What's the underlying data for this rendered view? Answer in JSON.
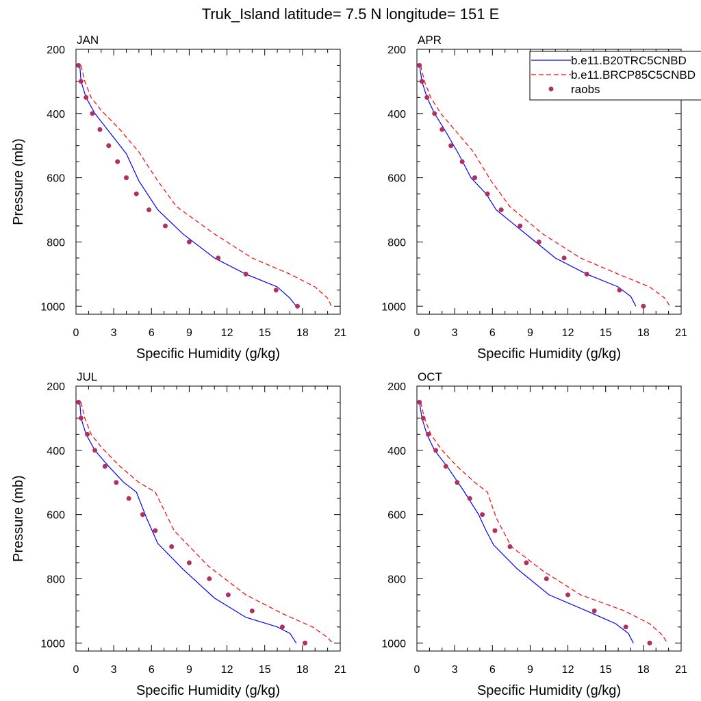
{
  "figure_title": "Truk_Island  latitude= 7.5 N longitude= 151 E",
  "colors": {
    "model_a": "#0000ff",
    "model_b": "#ff0000",
    "obs": "#b03060",
    "axis": "#000000"
  },
  "chart_data": [
    {
      "type": "line",
      "panel": "JAN",
      "title": "JAN",
      "xlabel": "Specific Humidity (g/kg)",
      "ylabel": "Pressure (mb)",
      "xlim": [
        0,
        21
      ],
      "ylim": [
        200,
        1025
      ],
      "y_inverted": true,
      "xticks": [
        0,
        3,
        6,
        9,
        12,
        15,
        18,
        21
      ],
      "yticks": [
        200,
        400,
        600,
        800,
        1000
      ],
      "series": [
        {
          "name": "b.e11.B20TRC5CNBD",
          "style": "solid",
          "x": [
            0.3,
            0.4,
            0.8,
            1.5,
            2.5,
            4.0,
            5.0,
            6.5,
            8.5,
            11.0,
            13.5,
            16.0,
            17.0,
            17.5
          ],
          "y": [
            250,
            300,
            350,
            400,
            450,
            525,
            610,
            700,
            775,
            850,
            900,
            940,
            975,
            1000
          ]
        },
        {
          "name": "b.e11.BRCP85C5CNBD",
          "style": "dashed",
          "x": [
            0.4,
            0.7,
            1.2,
            2.0,
            3.5,
            5.0,
            6.5,
            8.0,
            11.0,
            14.0,
            17.0,
            19.0,
            20.0,
            20.3
          ],
          "y": [
            250,
            300,
            350,
            390,
            450,
            520,
            610,
            690,
            775,
            850,
            900,
            940,
            975,
            1000
          ]
        }
      ],
      "points": {
        "name": "raobs",
        "x": [
          0.2,
          0.4,
          0.8,
          1.3,
          1.9,
          2.6,
          3.3,
          4.0,
          4.8,
          5.8,
          7.1,
          9.0,
          11.3,
          13.5,
          15.9,
          17.6
        ],
        "y": [
          250,
          300,
          350,
          400,
          450,
          500,
          550,
          600,
          650,
          700,
          750,
          800,
          850,
          900,
          950,
          1000
        ]
      }
    },
    {
      "type": "line",
      "panel": "APR",
      "title": "APR",
      "xlabel": "Specific Humidity (g/kg)",
      "ylabel": "",
      "xlim": [
        0,
        21
      ],
      "ylim": [
        200,
        1025
      ],
      "y_inverted": true,
      "xticks": [
        0,
        3,
        6,
        9,
        12,
        15,
        18,
        21
      ],
      "yticks": [
        200,
        400,
        600,
        800,
        1000
      ],
      "series": [
        {
          "name": "b.e11.B20TRC5CNBD",
          "style": "solid",
          "x": [
            0.2,
            0.4,
            0.8,
            1.4,
            2.2,
            3.3,
            4.3,
            5.5,
            6.3,
            8.5,
            11.0,
            13.5,
            16.0,
            17.0,
            17.4
          ],
          "y": [
            250,
            300,
            350,
            400,
            450,
            525,
            600,
            650,
            700,
            770,
            850,
            900,
            940,
            970,
            1000
          ]
        },
        {
          "name": "b.e11.BRCP85C5CNBD",
          "style": "dashed",
          "x": [
            0.3,
            0.6,
            1.1,
            1.9,
            3.0,
            4.5,
            5.9,
            7.4,
            10.0,
            13.0,
            16.0,
            18.5,
            19.7,
            20.1
          ],
          "y": [
            250,
            300,
            350,
            400,
            450,
            520,
            610,
            690,
            775,
            850,
            900,
            940,
            975,
            1000
          ]
        }
      ],
      "points": {
        "name": "raobs",
        "x": [
          0.2,
          0.4,
          0.8,
          1.4,
          2.0,
          2.7,
          3.6,
          4.6,
          5.6,
          6.7,
          8.2,
          9.7,
          11.7,
          13.5,
          16.1,
          18.0
        ],
        "y": [
          250,
          300,
          350,
          400,
          450,
          500,
          550,
          600,
          650,
          700,
          750,
          800,
          850,
          900,
          950,
          1000
        ]
      }
    },
    {
      "type": "line",
      "panel": "JUL",
      "title": "JUL",
      "xlabel": "Specific Humidity (g/kg)",
      "ylabel": "Pressure (mb)",
      "xlim": [
        0,
        21
      ],
      "ylim": [
        200,
        1025
      ],
      "y_inverted": true,
      "xticks": [
        0,
        3,
        6,
        9,
        12,
        15,
        18,
        21
      ],
      "yticks": [
        200,
        400,
        600,
        800,
        1000
      ],
      "series": [
        {
          "name": "b.e11.B20TRC5CNBD",
          "style": "solid",
          "x": [
            0.3,
            0.4,
            0.8,
            1.5,
            2.6,
            3.8,
            4.8,
            5.6,
            6.5,
            8.5,
            11.0,
            13.5,
            16.0,
            17.0,
            17.5
          ],
          "y": [
            250,
            300,
            350,
            400,
            450,
            500,
            530,
            610,
            690,
            770,
            860,
            920,
            950,
            970,
            1000
          ]
        },
        {
          "name": "b.e11.BRCP85C5CNBD",
          "style": "dashed",
          "x": [
            0.4,
            0.7,
            1.2,
            2.0,
            3.5,
            5.0,
            6.3,
            7.8,
            10.5,
            13.5,
            16.5,
            18.8,
            19.9,
            20.4
          ],
          "y": [
            250,
            300,
            350,
            390,
            450,
            500,
            530,
            650,
            760,
            850,
            910,
            950,
            980,
            1000
          ]
        }
      ],
      "points": {
        "name": "raobs",
        "x": [
          0.2,
          0.4,
          0.9,
          1.5,
          2.3,
          3.2,
          4.2,
          5.3,
          6.3,
          7.6,
          9.0,
          10.6,
          12.1,
          14.0,
          16.4,
          18.2
        ],
        "y": [
          250,
          300,
          350,
          400,
          450,
          500,
          550,
          600,
          650,
          700,
          750,
          800,
          850,
          900,
          950,
          1000
        ]
      }
    },
    {
      "type": "line",
      "panel": "OCT",
      "title": "OCT",
      "xlabel": "Specific Humidity (g/kg)",
      "ylabel": "",
      "xlim": [
        0,
        21
      ],
      "ylim": [
        200,
        1025
      ],
      "y_inverted": true,
      "xticks": [
        0,
        3,
        6,
        9,
        12,
        15,
        18,
        21
      ],
      "yticks": [
        200,
        400,
        600,
        800,
        1000
      ],
      "series": [
        {
          "name": "b.e11.B20TRC5CNBD",
          "style": "solid",
          "x": [
            0.2,
            0.4,
            0.8,
            1.4,
            2.4,
            3.7,
            4.9,
            5.5,
            6.1,
            8.0,
            10.5,
            13.5,
            15.8,
            16.8,
            17.2
          ],
          "y": [
            250,
            300,
            350,
            400,
            450,
            525,
            600,
            650,
            695,
            770,
            850,
            900,
            940,
            970,
            1000
          ]
        },
        {
          "name": "b.e11.BRCP85C5CNBD",
          "style": "dashed",
          "x": [
            0.3,
            0.6,
            1.1,
            2.0,
            3.2,
            4.6,
            5.6,
            6.3,
            7.5,
            10.0,
            13.0,
            16.5,
            18.5,
            19.5,
            19.9
          ],
          "y": [
            250,
            300,
            350,
            400,
            450,
            500,
            530,
            610,
            700,
            775,
            850,
            900,
            940,
            975,
            1000
          ]
        }
      ],
      "points": {
        "name": "raobs",
        "x": [
          0.2,
          0.5,
          0.9,
          1.5,
          2.3,
          3.2,
          4.2,
          5.2,
          6.2,
          7.4,
          8.7,
          10.3,
          12.0,
          14.1,
          16.6,
          18.5
        ],
        "y": [
          250,
          300,
          350,
          400,
          450,
          500,
          550,
          600,
          650,
          700,
          750,
          800,
          850,
          900,
          950,
          1000
        ]
      }
    }
  ],
  "legend": {
    "placement": "top-right",
    "entries": [
      {
        "label": "b.e11.B20TRC5CNBD",
        "style": "solid"
      },
      {
        "label": "b.e11.BRCP85C5CNBD",
        "style": "dashed"
      },
      {
        "label": "raobs",
        "style": "marker"
      }
    ]
  }
}
